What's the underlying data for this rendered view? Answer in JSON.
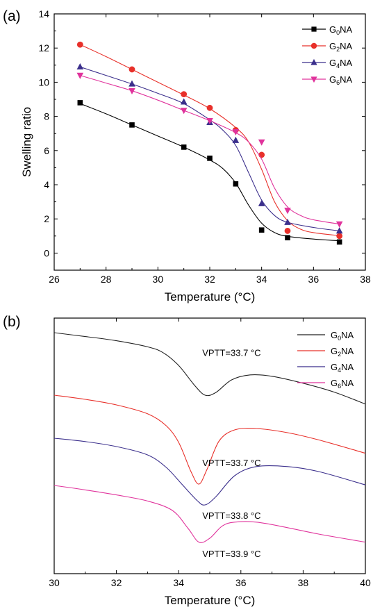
{
  "chart_data": [
    {
      "panel_label": "(a)",
      "type": "line",
      "xlabel": "Temperature  (°C)",
      "ylabel": "Swelling ratio",
      "xlim": [
        26,
        38
      ],
      "ylim": [
        -1,
        14
      ],
      "xticks": [
        "26",
        "28",
        "30",
        "32",
        "34",
        "36",
        "38"
      ],
      "yticks": [
        "0",
        "2",
        "4",
        "6",
        "8",
        "10",
        "12",
        "14"
      ],
      "legend_position": "top-right",
      "series": [
        {
          "name": "G0NA",
          "name_parts": [
            "G",
            "0",
            "NA"
          ],
          "color": "#000000",
          "marker": "square",
          "points": [
            [
              27,
              8.8
            ],
            [
              29,
              7.5
            ],
            [
              31,
              6.2
            ],
            [
              32,
              5.55
            ],
            [
              33,
              4.05
            ],
            [
              34,
              1.35
            ],
            [
              35,
              0.9
            ],
            [
              37,
              0.65
            ]
          ],
          "curve": [
            [
              27,
              8.75
            ],
            [
              28,
              8.15
            ],
            [
              29,
              7.5
            ],
            [
              30,
              6.85
            ],
            [
              31,
              6.2
            ],
            [
              32,
              5.45
            ],
            [
              32.5,
              4.95
            ],
            [
              33,
              4.1
            ],
            [
              33.5,
              2.8
            ],
            [
              34,
              1.75
            ],
            [
              34.5,
              1.2
            ],
            [
              35,
              0.98
            ],
            [
              36,
              0.82
            ],
            [
              37,
              0.72
            ]
          ]
        },
        {
          "name": "G2NA",
          "name_parts": [
            "G",
            "2",
            "NA"
          ],
          "color": "#e8302a",
          "marker": "circle",
          "points": [
            [
              27,
              12.2
            ],
            [
              29,
              10.75
            ],
            [
              31,
              9.3
            ],
            [
              32,
              8.5
            ],
            [
              33,
              7.2
            ],
            [
              34,
              5.75
            ],
            [
              35,
              1.3
            ],
            [
              37,
              1.0
            ]
          ],
          "curve": [
            [
              27,
              12.2
            ],
            [
              28,
              11.5
            ],
            [
              29,
              10.75
            ],
            [
              30,
              10.0
            ],
            [
              31,
              9.25
            ],
            [
              32,
              8.45
            ],
            [
              33,
              7.35
            ],
            [
              33.5,
              6.5
            ],
            [
              34,
              4.9
            ],
            [
              34.5,
              3.0
            ],
            [
              35,
              1.9
            ],
            [
              35.5,
              1.4
            ],
            [
              36,
              1.2
            ],
            [
              37,
              1.02
            ]
          ]
        },
        {
          "name": "G4NA",
          "name_parts": [
            "G",
            "4",
            "NA"
          ],
          "color": "#3b2f8c",
          "marker": "triangle",
          "points": [
            [
              27,
              10.9
            ],
            [
              29,
              9.9
            ],
            [
              31,
              8.85
            ],
            [
              32,
              7.65
            ],
            [
              33,
              6.6
            ],
            [
              34,
              2.9
            ],
            [
              35,
              1.8
            ],
            [
              37,
              1.3
            ]
          ],
          "curve": [
            [
              27,
              10.9
            ],
            [
              28,
              10.4
            ],
            [
              29,
              9.9
            ],
            [
              30,
              9.35
            ],
            [
              31,
              8.75
            ],
            [
              32,
              7.8
            ],
            [
              32.5,
              7.2
            ],
            [
              33,
              6.3
            ],
            [
              33.5,
              4.7
            ],
            [
              34,
              3.1
            ],
            [
              34.5,
              2.2
            ],
            [
              35,
              1.8
            ],
            [
              36,
              1.5
            ],
            [
              37,
              1.3
            ]
          ]
        },
        {
          "name": "G6NA",
          "name_parts": [
            "G",
            "6",
            "NA"
          ],
          "color": "#e0339c",
          "marker": "triangle-down",
          "points": [
            [
              27,
              10.4
            ],
            [
              29,
              9.5
            ],
            [
              31,
              8.35
            ],
            [
              32,
              7.75
            ],
            [
              33,
              7.1
            ],
            [
              34,
              6.5
            ],
            [
              35,
              2.5
            ],
            [
              37,
              1.7
            ]
          ],
          "curve": [
            [
              27,
              10.4
            ],
            [
              28,
              9.95
            ],
            [
              29,
              9.5
            ],
            [
              30,
              8.95
            ],
            [
              31,
              8.35
            ],
            [
              32,
              7.75
            ],
            [
              33,
              7.05
            ],
            [
              33.5,
              6.5
            ],
            [
              34,
              5.5
            ],
            [
              34.5,
              3.8
            ],
            [
              35,
              2.7
            ],
            [
              35.5,
              2.2
            ],
            [
              36,
              1.95
            ],
            [
              37,
              1.7
            ]
          ]
        }
      ]
    },
    {
      "panel_label": "(b)",
      "type": "line",
      "xlabel": "Temperature  (°C)",
      "xlim": [
        30,
        40
      ],
      "xticks": [
        "30",
        "32",
        "34",
        "36",
        "38",
        "40"
      ],
      "legend_position": "top-right",
      "series": [
        {
          "name": "G0NA",
          "name_parts": [
            "G",
            "0",
            "NA"
          ],
          "color": "#222222",
          "annotation": "VPTT=33.7 °C",
          "annotation_x": 35.7,
          "annotation_level": 0.835,
          "curve": [
            [
              30,
              0.0
            ],
            [
              31,
              0.14
            ],
            [
              32,
              0.29
            ],
            [
              33,
              0.51
            ],
            [
              33.5,
              0.72
            ],
            [
              34,
              1.18
            ],
            [
              34.5,
              1.88
            ],
            [
              34.85,
              2.25
            ],
            [
              35.2,
              2.15
            ],
            [
              35.7,
              1.7
            ],
            [
              36.3,
              1.52
            ],
            [
              37,
              1.57
            ],
            [
              38,
              1.82
            ],
            [
              39,
              2.14
            ],
            [
              40,
              2.57
            ]
          ]
        },
        {
          "name": "G2NA",
          "name_parts": [
            "G",
            "2",
            "NA"
          ],
          "color": "#e8302a",
          "annotation": "VPTT=33.7 °C",
          "annotation_x": 35.7,
          "annotation_level": 4.8,
          "curve": [
            [
              30,
              2.25
            ],
            [
              31,
              2.4
            ],
            [
              32,
              2.6
            ],
            [
              33,
              2.92
            ],
            [
              33.6,
              3.35
            ],
            [
              34,
              3.95
            ],
            [
              34.4,
              5.01
            ],
            [
              34.65,
              5.45
            ],
            [
              34.9,
              4.95
            ],
            [
              35.3,
              3.9
            ],
            [
              35.8,
              3.5
            ],
            [
              36.5,
              3.45
            ],
            [
              37.5,
              3.6
            ],
            [
              38.5,
              3.86
            ],
            [
              40,
              4.34
            ]
          ]
        },
        {
          "name": "G4NA",
          "name_parts": [
            "G",
            "4",
            "NA"
          ],
          "color": "#3b2f8c",
          "annotation": "VPTT=33.8 °C",
          "annotation_x": 35.7,
          "annotation_level": 6.7,
          "curve": [
            [
              30,
              3.8
            ],
            [
              31,
              3.92
            ],
            [
              32,
              4.1
            ],
            [
              33,
              4.4
            ],
            [
              33.6,
              4.85
            ],
            [
              34.1,
              5.45
            ],
            [
              34.6,
              6.05
            ],
            [
              34.85,
              6.2
            ],
            [
              35.2,
              5.9
            ],
            [
              35.8,
              5.15
            ],
            [
              36.5,
              4.82
            ],
            [
              37.5,
              4.82
            ],
            [
              38.5,
              5.0
            ],
            [
              40,
              5.48
            ]
          ]
        },
        {
          "name": "G6NA",
          "name_parts": [
            "G",
            "6",
            "NA"
          ],
          "color": "#e0339c",
          "annotation": "VPTT=33.9 °C",
          "annotation_x": 35.7,
          "annotation_level": 8.08,
          "curve": [
            [
              30,
              5.5
            ],
            [
              31,
              5.66
            ],
            [
              32,
              5.84
            ],
            [
              33,
              6.06
            ],
            [
              33.8,
              6.4
            ],
            [
              34.3,
              7.04
            ],
            [
              34.65,
              7.54
            ],
            [
              35,
              7.4
            ],
            [
              35.4,
              6.96
            ],
            [
              35.8,
              6.82
            ],
            [
              36.5,
              6.82
            ],
            [
              37.5,
              7.02
            ],
            [
              38.5,
              7.25
            ],
            [
              40,
              7.54
            ]
          ]
        }
      ]
    }
  ]
}
